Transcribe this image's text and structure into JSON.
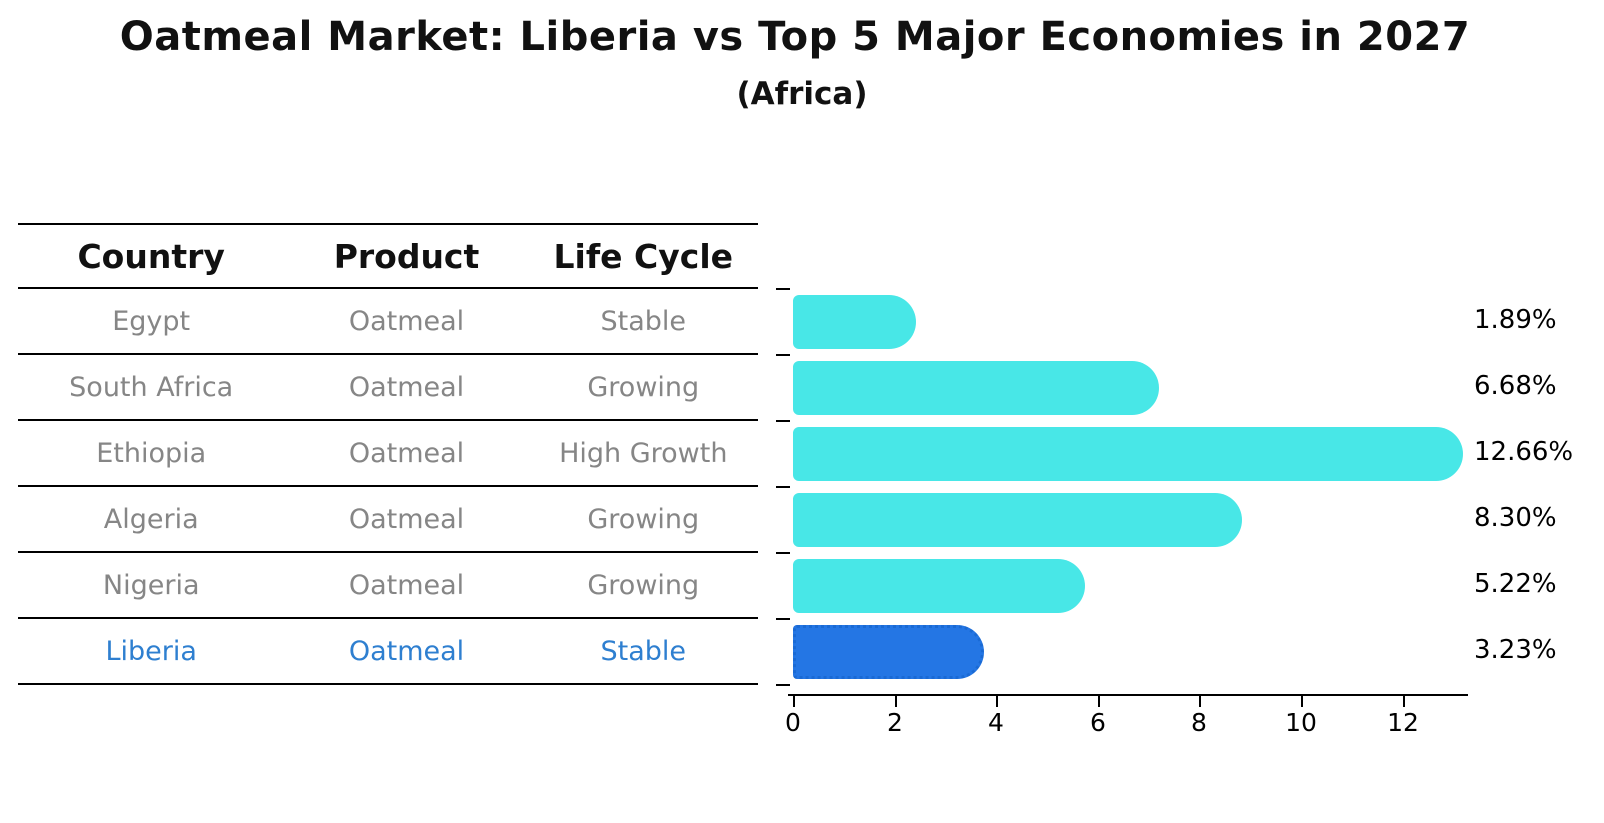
{
  "title": "Oatmeal Market: Liberia vs Top 5 Major Economies in 2027",
  "subtitle": "(Africa)",
  "table": {
    "headers": {
      "country": "Country",
      "product": "Product",
      "life_cycle": "Life Cycle"
    },
    "rows": [
      {
        "country": "Egypt",
        "product": "Oatmeal",
        "life_cycle": "Stable",
        "highlight": false
      },
      {
        "country": "South Africa",
        "product": "Oatmeal",
        "life_cycle": "Growing",
        "highlight": false
      },
      {
        "country": "Ethiopia",
        "product": "Oatmeal",
        "life_cycle": "High Growth",
        "highlight": false
      },
      {
        "country": "Algeria",
        "product": "Oatmeal",
        "life_cycle": "Growing",
        "highlight": false
      },
      {
        "country": "Nigeria",
        "product": "Oatmeal",
        "life_cycle": "Growing",
        "highlight": false
      },
      {
        "country": "Liberia",
        "product": "Oatmeal",
        "life_cycle": "Stable",
        "highlight": true
      }
    ]
  },
  "chart_data": {
    "type": "bar",
    "orientation": "horizontal",
    "categories": [
      "Egypt",
      "South Africa",
      "Ethiopia",
      "Algeria",
      "Nigeria",
      "Liberia"
    ],
    "values": [
      1.89,
      6.68,
      12.66,
      8.3,
      5.22,
      3.23
    ],
    "labels": [
      "1.89%",
      "6.68%",
      "12.66%",
      "8.30%",
      "5.22%",
      "3.23%"
    ],
    "highlight_index": 5,
    "xticks": [
      0,
      2,
      4,
      6,
      8,
      10,
      12
    ],
    "xlim": [
      0,
      13.3
    ],
    "grid": false,
    "legend": false,
    "bar_color": "#48e7e7",
    "highlight_bar_color": "#2476e4",
    "highlight_edge_color": "#1a6ad4",
    "highlight_text_color": "#2e7fd0"
  }
}
